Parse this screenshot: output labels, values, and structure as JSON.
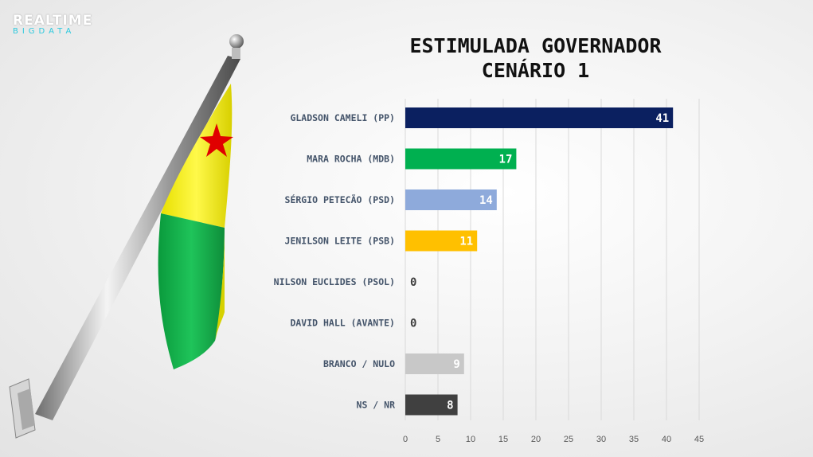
{
  "logo": {
    "top": "REALTIME",
    "bottom": "BIGDATA"
  },
  "title_line1": "ESTIMULADA GOVERNADOR",
  "title_line2": "CENÁRIO 1",
  "chart_data": {
    "type": "bar",
    "orientation": "horizontal",
    "title": "ESTIMULADA GOVERNADOR CENÁRIO 1",
    "categories": [
      "GLADSON CAMELI (PP)",
      "MARA ROCHA (MDB)",
      "SÉRGIO PETECÃO (PSD)",
      "JENILSON LEITE (PSB)",
      "NILSON EUCLIDES (PSOL)",
      "DAVID HALL (AVANTE)",
      "BRANCO / NULO",
      "NS / NR"
    ],
    "values": [
      41,
      17,
      14,
      11,
      0,
      0,
      9,
      8
    ],
    "colors": [
      "#0b2060",
      "#00b050",
      "#8eaadb",
      "#ffc000",
      "#888888",
      "#888888",
      "#c8c8c8",
      "#404040"
    ],
    "xlim": [
      0,
      45
    ],
    "xticks": [
      0,
      5,
      10,
      15,
      20,
      25,
      30,
      35,
      40,
      45
    ],
    "grid": true,
    "legend": "none",
    "xlabel": "",
    "ylabel": ""
  }
}
